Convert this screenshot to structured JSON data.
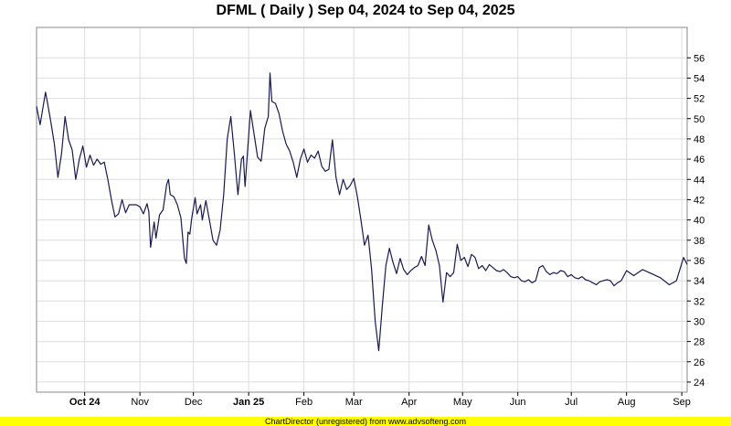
{
  "chart_data": {
    "type": "line",
    "title": "DFML ( Daily ) Sep 04, 2024 to Sep 04, 2025",
    "xlabel": "",
    "ylabel": "",
    "ylim": [
      23,
      59
    ],
    "y_ticks": [
      24,
      26,
      28,
      30,
      32,
      34,
      36,
      38,
      40,
      42,
      44,
      46,
      48,
      50,
      52,
      54,
      56
    ],
    "y_axis_side": "right",
    "grid": true,
    "line_color": "#1a1a4e",
    "x_range": [
      "2024-09-04",
      "2025-09-04"
    ],
    "x_ticks": [
      {
        "date": "2024-10-01",
        "label": "Oct 24",
        "bold": true
      },
      {
        "date": "2024-11-01",
        "label": "Nov",
        "bold": false
      },
      {
        "date": "2024-12-01",
        "label": "Dec",
        "bold": false
      },
      {
        "date": "2025-01-01",
        "label": "Jan 25",
        "bold": true
      },
      {
        "date": "2025-02-01",
        "label": "Feb",
        "bold": false
      },
      {
        "date": "2025-03-01",
        "label": "Mar",
        "bold": false
      },
      {
        "date": "2025-04-01",
        "label": "Apr",
        "bold": false
      },
      {
        "date": "2025-05-01",
        "label": "May",
        "bold": false
      },
      {
        "date": "2025-06-01",
        "label": "Jun",
        "bold": false
      },
      {
        "date": "2025-07-01",
        "label": "Jul",
        "bold": false
      },
      {
        "date": "2025-08-01",
        "label": "Aug",
        "bold": false
      },
      {
        "date": "2025-09-01",
        "label": "Sep",
        "bold": false
      }
    ],
    "series": [
      {
        "points": [
          [
            "2024-09-04",
            51.2
          ],
          [
            "2024-09-06",
            49.4
          ],
          [
            "2024-09-09",
            52.6
          ],
          [
            "2024-09-10",
            51.7
          ],
          [
            "2024-09-12",
            49.7
          ],
          [
            "2024-09-14",
            47.5
          ],
          [
            "2024-09-16",
            44.2
          ],
          [
            "2024-09-18",
            46.5
          ],
          [
            "2024-09-20",
            50.2
          ],
          [
            "2024-09-22",
            47.9
          ],
          [
            "2024-09-24",
            46.9
          ],
          [
            "2024-09-26",
            44.0
          ],
          [
            "2024-09-28",
            46.0
          ],
          [
            "2024-09-30",
            47.3
          ],
          [
            "2024-10-02",
            45.2
          ],
          [
            "2024-10-04",
            46.4
          ],
          [
            "2024-10-06",
            45.4
          ],
          [
            "2024-10-08",
            46.0
          ],
          [
            "2024-10-10",
            45.5
          ],
          [
            "2024-10-12",
            45.7
          ],
          [
            "2024-10-14",
            44.0
          ],
          [
            "2024-10-16",
            42.0
          ],
          [
            "2024-10-18",
            40.3
          ],
          [
            "2024-10-20",
            40.6
          ],
          [
            "2024-10-22",
            42.0
          ],
          [
            "2024-10-24",
            40.7
          ],
          [
            "2024-10-26",
            41.5
          ],
          [
            "2024-10-28",
            41.5
          ],
          [
            "2024-10-30",
            41.5
          ],
          [
            "2024-11-01",
            41.3
          ],
          [
            "2024-11-03",
            40.6
          ],
          [
            "2024-11-05",
            41.6
          ],
          [
            "2024-11-06",
            40.8
          ],
          [
            "2024-11-07",
            37.3
          ],
          [
            "2024-11-09",
            39.8
          ],
          [
            "2024-11-10",
            38.2
          ],
          [
            "2024-11-12",
            40.5
          ],
          [
            "2024-11-14",
            41.0
          ],
          [
            "2024-11-16",
            43.5
          ],
          [
            "2024-11-17",
            44.0
          ],
          [
            "2024-11-18",
            42.5
          ],
          [
            "2024-11-20",
            42.3
          ],
          [
            "2024-11-22",
            41.5
          ],
          [
            "2024-11-24",
            40.2
          ],
          [
            "2024-11-26",
            36.2
          ],
          [
            "2024-11-27",
            35.7
          ],
          [
            "2024-11-28",
            38.8
          ],
          [
            "2024-11-29",
            38.6
          ],
          [
            "2024-11-30",
            40.1
          ],
          [
            "2024-12-02",
            42.2
          ],
          [
            "2024-12-03",
            40.6
          ],
          [
            "2024-12-05",
            41.5
          ],
          [
            "2024-12-06",
            40.0
          ],
          [
            "2024-12-08",
            41.9
          ],
          [
            "2024-12-10",
            40.0
          ],
          [
            "2024-12-12",
            38.0
          ],
          [
            "2024-12-14",
            37.5
          ],
          [
            "2024-12-16",
            39.0
          ],
          [
            "2024-12-18",
            42.5
          ],
          [
            "2024-12-20",
            48.0
          ],
          [
            "2024-12-22",
            50.2
          ],
          [
            "2024-12-24",
            46.5
          ],
          [
            "2024-12-26",
            42.5
          ],
          [
            "2024-12-28",
            46.0
          ],
          [
            "2024-12-29",
            46.3
          ],
          [
            "2024-12-30",
            43.3
          ],
          [
            "2025-01-02",
            50.8
          ],
          [
            "2025-01-04",
            48.5
          ],
          [
            "2025-01-06",
            46.2
          ],
          [
            "2025-01-08",
            45.8
          ],
          [
            "2025-01-10",
            49.0
          ],
          [
            "2025-01-11",
            49.6
          ],
          [
            "2025-01-12",
            50.2
          ],
          [
            "2025-01-13",
            54.5
          ],
          [
            "2025-01-14",
            51.7
          ],
          [
            "2025-01-16",
            51.5
          ],
          [
            "2025-01-18",
            50.5
          ],
          [
            "2025-01-20",
            48.8
          ],
          [
            "2025-01-22",
            47.5
          ],
          [
            "2025-01-24",
            46.8
          ],
          [
            "2025-01-26",
            45.7
          ],
          [
            "2025-01-28",
            44.2
          ],
          [
            "2025-01-30",
            46.0
          ],
          [
            "2025-02-01",
            47.0
          ],
          [
            "2025-02-03",
            45.7
          ],
          [
            "2025-02-05",
            46.4
          ],
          [
            "2025-02-07",
            46.1
          ],
          [
            "2025-02-09",
            46.8
          ],
          [
            "2025-02-11",
            45.3
          ],
          [
            "2025-02-13",
            44.8
          ],
          [
            "2025-02-15",
            45.0
          ],
          [
            "2025-02-17",
            47.9
          ],
          [
            "2025-02-19",
            44.2
          ],
          [
            "2025-02-21",
            42.5
          ],
          [
            "2025-02-23",
            44.0
          ],
          [
            "2025-02-25",
            43.0
          ],
          [
            "2025-02-27",
            43.4
          ],
          [
            "2025-03-01",
            44.1
          ],
          [
            "2025-03-03",
            42.3
          ],
          [
            "2025-03-05",
            40.0
          ],
          [
            "2025-03-07",
            37.5
          ],
          [
            "2025-03-09",
            38.5
          ],
          [
            "2025-03-11",
            35.1
          ],
          [
            "2025-03-13",
            30.0
          ],
          [
            "2025-03-15",
            27.1
          ],
          [
            "2025-03-17",
            31.5
          ],
          [
            "2025-03-19",
            35.5
          ],
          [
            "2025-03-21",
            37.2
          ],
          [
            "2025-03-23",
            35.8
          ],
          [
            "2025-03-25",
            34.7
          ],
          [
            "2025-03-27",
            36.2
          ],
          [
            "2025-03-29",
            35.1
          ],
          [
            "2025-03-31",
            34.6
          ],
          [
            "2025-04-02",
            35.0
          ],
          [
            "2025-04-04",
            35.3
          ],
          [
            "2025-04-06",
            35.5
          ],
          [
            "2025-04-08",
            36.4
          ],
          [
            "2025-04-10",
            35.5
          ],
          [
            "2025-04-12",
            39.5
          ],
          [
            "2025-04-14",
            38.0
          ],
          [
            "2025-04-16",
            37.0
          ],
          [
            "2025-04-18",
            35.5
          ],
          [
            "2025-04-20",
            31.9
          ],
          [
            "2025-04-22",
            34.8
          ],
          [
            "2025-04-24",
            34.4
          ],
          [
            "2025-04-26",
            34.8
          ],
          [
            "2025-04-28",
            37.6
          ],
          [
            "2025-04-30",
            36.0
          ],
          [
            "2025-05-02",
            36.3
          ],
          [
            "2025-05-04",
            35.4
          ],
          [
            "2025-05-06",
            36.6
          ],
          [
            "2025-05-08",
            36.3
          ],
          [
            "2025-05-10",
            35.2
          ],
          [
            "2025-05-12",
            35.5
          ],
          [
            "2025-05-14",
            35.0
          ],
          [
            "2025-05-16",
            35.6
          ],
          [
            "2025-05-18",
            35.3
          ],
          [
            "2025-05-20",
            35.0
          ],
          [
            "2025-05-22",
            34.9
          ],
          [
            "2025-05-24",
            35.1
          ],
          [
            "2025-05-26",
            34.8
          ],
          [
            "2025-05-28",
            34.4
          ],
          [
            "2025-05-30",
            34.3
          ],
          [
            "2025-06-01",
            34.4
          ],
          [
            "2025-06-03",
            34.0
          ],
          [
            "2025-06-05",
            33.9
          ],
          [
            "2025-06-07",
            34.1
          ],
          [
            "2025-06-09",
            33.8
          ],
          [
            "2025-06-11",
            34.0
          ],
          [
            "2025-06-13",
            35.3
          ],
          [
            "2025-06-15",
            35.5
          ],
          [
            "2025-06-17",
            34.9
          ],
          [
            "2025-06-19",
            34.6
          ],
          [
            "2025-06-21",
            34.8
          ],
          [
            "2025-06-23",
            34.7
          ],
          [
            "2025-06-25",
            35.0
          ],
          [
            "2025-06-27",
            34.9
          ],
          [
            "2025-06-29",
            34.4
          ],
          [
            "2025-07-01",
            34.6
          ],
          [
            "2025-07-03",
            34.3
          ],
          [
            "2025-07-05",
            34.2
          ],
          [
            "2025-07-07",
            34.4
          ],
          [
            "2025-07-09",
            34.1
          ],
          [
            "2025-07-11",
            34.0
          ],
          [
            "2025-07-13",
            33.8
          ],
          [
            "2025-07-15",
            33.6
          ],
          [
            "2025-07-17",
            33.9
          ],
          [
            "2025-07-19",
            34.0
          ],
          [
            "2025-07-21",
            34.1
          ],
          [
            "2025-07-23",
            34.0
          ],
          [
            "2025-07-25",
            33.5
          ],
          [
            "2025-07-27",
            33.8
          ],
          [
            "2025-07-29",
            34.0
          ],
          [
            "2025-08-01",
            35.0
          ],
          [
            "2025-08-05",
            34.5
          ],
          [
            "2025-08-10",
            35.1
          ],
          [
            "2025-08-15",
            34.7
          ],
          [
            "2025-08-20",
            34.3
          ],
          [
            "2025-08-25",
            33.6
          ],
          [
            "2025-08-29",
            34.0
          ],
          [
            "2025-09-02",
            36.3
          ],
          [
            "2025-09-04",
            35.6
          ]
        ]
      }
    ]
  },
  "footer": {
    "text": "ChartDirector (unregistered) from www.advsofteng.com",
    "color": "#ffff00"
  }
}
